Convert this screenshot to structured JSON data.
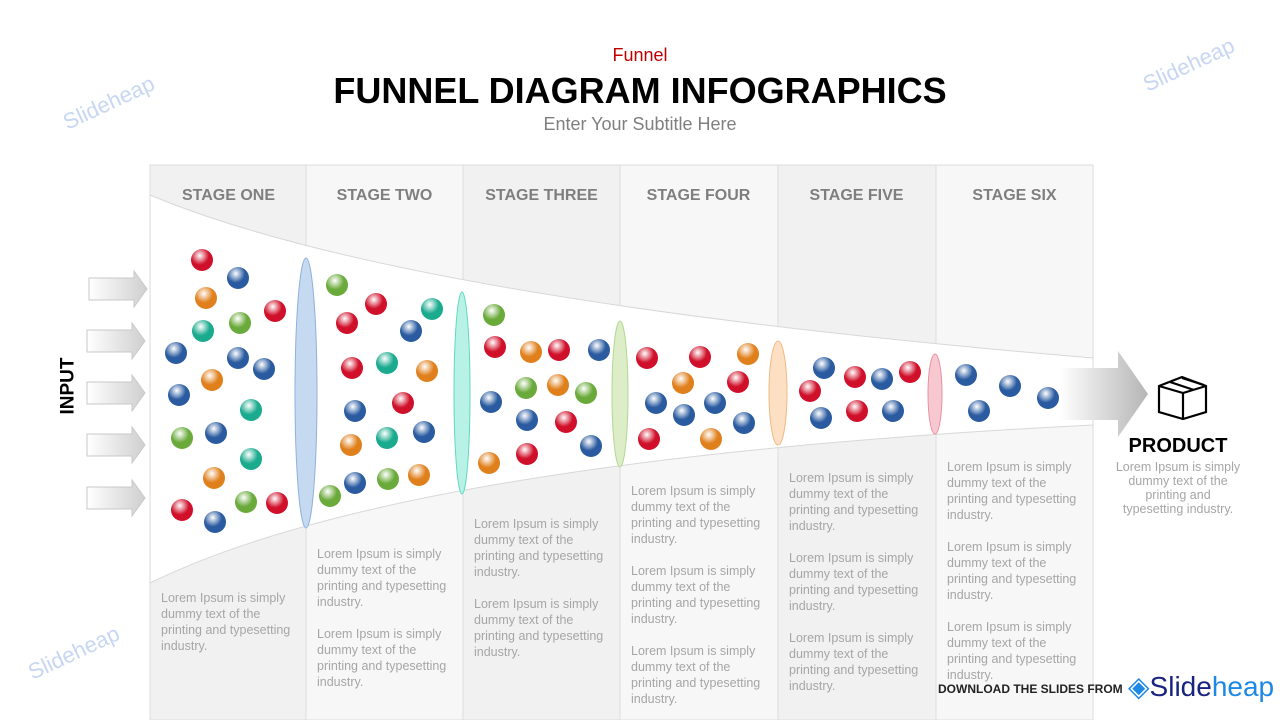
{
  "header": {
    "kicker": "Funnel",
    "title": "FUNNEL DIAGRAM INFOGRAPHICS",
    "subtitle": "Enter Your Subtitle Here"
  },
  "input_label": "INPUT",
  "stages": [
    {
      "label": "STAGE ONE",
      "paragraphs": [
        "Lorem Ipsum is simply dummy text of the printing and typesetting industry."
      ]
    },
    {
      "label": "STAGE TWO",
      "paragraphs": [
        "Lorem Ipsum is simply dummy text of the printing and typesetting industry.",
        "Lorem Ipsum is simply dummy text of the printing and typesetting industry."
      ]
    },
    {
      "label": "STAGE THREE",
      "paragraphs": [
        "Lorem Ipsum is simply dummy text of the printing and typesetting industry.",
        "Lorem Ipsum is simply dummy text of the printing and typesetting industry."
      ]
    },
    {
      "label": "STAGE FOUR",
      "paragraphs": [
        "Lorem Ipsum is simply dummy text of the printing and typesetting industry.",
        "Lorem Ipsum is simply dummy text of the printing and typesetting industry.",
        "Lorem Ipsum is simply dummy text of the printing and typesetting industry."
      ]
    },
    {
      "label": "STAGE FIVE",
      "paragraphs": [
        "Lorem Ipsum is simply dummy text of the printing and typesetting industry.",
        "Lorem Ipsum is simply dummy text of the printing and typesetting industry.",
        "Lorem Ipsum is simply dummy text of the printing and typesetting industry."
      ]
    },
    {
      "label": "STAGE SIX",
      "paragraphs": [
        "Lorem Ipsum is simply dummy text of the printing and typesetting industry.",
        "Lorem Ipsum is simply dummy text of the printing and typesetting industry.",
        "Lorem Ipsum is simply dummy text of the printing and typesetting industry."
      ]
    }
  ],
  "product": {
    "label": "PRODUCT",
    "description": "Lorem Ipsum is simply dummy text of the printing and typesetting industry.",
    "icon": "box-icon"
  },
  "footer": {
    "download": "DOWNLOAD THE SLIDES FROM",
    "brand_a": "Slide",
    "brand_b": "heap"
  },
  "watermark": "Slideheap",
  "colors": {
    "red": "#d0102a",
    "blue": "#2a5ba0",
    "orange": "#e0801c",
    "green": "#6aaa3a",
    "teal": "#1aaa8e",
    "title_accent": "#c00000",
    "filter_colors": [
      "#c5d9f1",
      "#b8f2e6",
      "#dcedc8",
      "#fde0c4",
      "#f8c8d0"
    ]
  }
}
